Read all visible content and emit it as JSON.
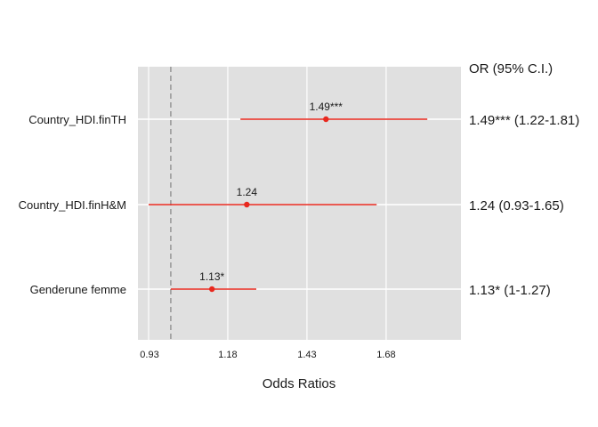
{
  "chart_data": {
    "type": "forest",
    "xlabel": "Odds Ratios",
    "xlim": [
      0.93,
      1.95
    ],
    "x_ticks": [
      0.93,
      1.18,
      1.43,
      1.68
    ],
    "x_tick_labels": [
      "0.93",
      "1.18",
      "1.43",
      "1.68"
    ],
    "reference_line": 1.0,
    "right_header": "OR (95% C.I.)",
    "grid": true,
    "colors": {
      "panel": "#e0e0e0",
      "grid": "#ffffff",
      "estimate": "#e8281e",
      "reference": "#9a9a9a"
    },
    "rows": [
      {
        "label": "Country_HDI.finTH",
        "or": 1.49,
        "lower": 1.22,
        "upper": 1.81,
        "point_label": "1.49***",
        "ci_text": "1.49*** (1.22-1.81)"
      },
      {
        "label": "Country_HDI.finH&M",
        "or": 1.24,
        "lower": 0.93,
        "upper": 1.65,
        "point_label": "1.24",
        "ci_text": "1.24 (0.93-1.65)"
      },
      {
        "label": "Genderune femme",
        "or": 1.13,
        "lower": 1.0,
        "upper": 1.27,
        "point_label": "1.13*",
        "ci_text": "1.13* (1-1.27)"
      }
    ]
  }
}
